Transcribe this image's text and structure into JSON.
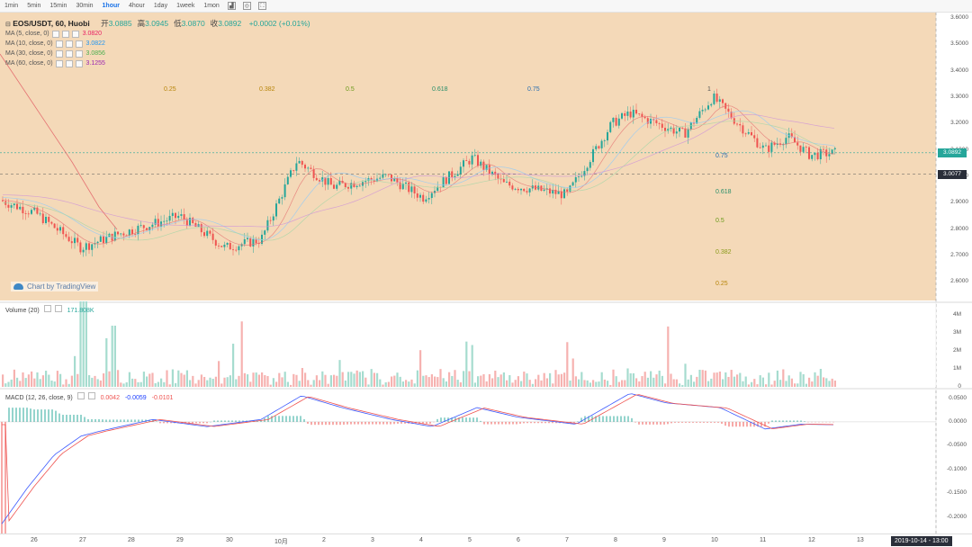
{
  "toolbar": {
    "timeframes": [
      "1min",
      "5min",
      "15min",
      "30min",
      "1hour",
      "4hour",
      "1day",
      "1week",
      "1mon"
    ],
    "active": "1hour",
    "icons": [
      "chart-type-icon",
      "indicator-icon",
      "fullscreen-icon"
    ]
  },
  "legend": {
    "symbol": "EOS/USDT, 60, Huobi",
    "ohlc": [
      {
        "label": "开",
        "value": "3.0885"
      },
      {
        "label": "高",
        "value": "3.0945"
      },
      {
        "label": "低",
        "value": "3.0870"
      },
      {
        "label": "收",
        "value": "3.0892"
      }
    ],
    "change": "+0.0002 (+0.01%)",
    "ma": [
      {
        "name": "MA (5, close, 0)",
        "value": "3.0820",
        "color": "#e91e63"
      },
      {
        "name": "MA (10, close, 0)",
        "value": "3.0822",
        "color": "#2196f3"
      },
      {
        "name": "MA (30, close, 0)",
        "value": "3.0856",
        "color": "#4caf50"
      },
      {
        "name": "MA (60, close, 0)",
        "value": "3.1255",
        "color": "#9c27b0"
      }
    ]
  },
  "price_axis": {
    "ticks": [
      "3.6000",
      "3.5000",
      "3.4000",
      "3.3000",
      "3.2000",
      "3.1000",
      "3.0000",
      "2.9000",
      "2.8000",
      "2.7000",
      "2.6000"
    ],
    "last_price": "3.0892",
    "crosshair_price": "3.0077"
  },
  "fib": {
    "top_labels": [
      "0.25",
      "0.382",
      "0.5",
      "0.618",
      "0.75",
      "1"
    ],
    "right_labels": [
      "0.75",
      "0.618",
      "0.5",
      "0.382",
      "0.25"
    ]
  },
  "volume": {
    "label": "Volume (20)",
    "value": "171.808K",
    "ticks": [
      "4M",
      "3M",
      "2M",
      "1M",
      "0"
    ]
  },
  "macd": {
    "label": "MACD (12, 26, close, 9)",
    "values": [
      "0.0042",
      "-0.0059",
      "-0.0101"
    ],
    "ticks": [
      "0.0500",
      "0.0000",
      "-0.0500",
      "-0.1000",
      "-0.1500",
      "-0.2000"
    ]
  },
  "date_axis": {
    "labels": [
      "26",
      "27",
      "28",
      "29",
      "30",
      "10月",
      "2",
      "3",
      "4",
      "5",
      "6",
      "7",
      "8",
      "9",
      "10",
      "11",
      "12",
      "13"
    ],
    "crosshair_date": "2019-10-14 - 13:00"
  },
  "watermark": "Chart by TradingView",
  "colors": {
    "up": "#26a69a",
    "down": "#ef5350",
    "last": "#26a69a",
    "crosshair": "#2a2e39"
  }
}
